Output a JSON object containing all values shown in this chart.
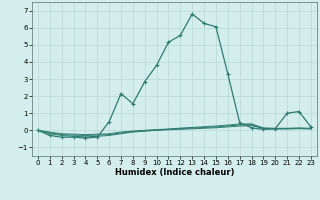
{
  "xlabel": "Humidex (Indice chaleur)",
  "x": [
    0,
    1,
    2,
    3,
    4,
    5,
    6,
    7,
    8,
    9,
    10,
    11,
    12,
    13,
    14,
    15,
    16,
    17,
    18,
    19,
    20,
    21,
    22,
    23
  ],
  "y_main": [
    0,
    -0.3,
    -0.4,
    -0.4,
    -0.45,
    -0.4,
    0.5,
    2.15,
    1.55,
    2.85,
    3.8,
    5.15,
    5.55,
    6.8,
    6.25,
    6.05,
    3.3,
    0.45,
    0.15,
    0.05,
    0.1,
    1.0,
    1.1,
    0.2
  ],
  "y_flat1": [
    0,
    -0.2,
    -0.3,
    -0.35,
    -0.38,
    -0.35,
    -0.3,
    -0.2,
    -0.1,
    -0.05,
    0.0,
    0.03,
    0.06,
    0.09,
    0.12,
    0.15,
    0.2,
    0.25,
    0.28,
    0.1,
    0.08,
    0.08,
    0.1,
    0.08
  ],
  "y_flat2": [
    0,
    -0.15,
    -0.25,
    -0.28,
    -0.3,
    -0.28,
    -0.25,
    -0.15,
    -0.07,
    -0.02,
    0.02,
    0.06,
    0.1,
    0.13,
    0.17,
    0.2,
    0.26,
    0.31,
    0.33,
    0.12,
    0.1,
    0.1,
    0.12,
    0.1
  ],
  "y_flat3": [
    0,
    -0.1,
    -0.2,
    -0.22,
    -0.25,
    -0.22,
    -0.2,
    -0.1,
    -0.04,
    0.0,
    0.04,
    0.08,
    0.13,
    0.17,
    0.21,
    0.25,
    0.31,
    0.37,
    0.38,
    0.14,
    0.12,
    0.12,
    0.14,
    0.12
  ],
  "line_color": "#2e7d6e",
  "bg_color": "#d4eeed",
  "grid_color": "#b8d8d5",
  "ylim": [
    -1.5,
    7.5
  ],
  "xlim": [
    -0.5,
    23.5
  ],
  "yticks": [
    -1,
    0,
    1,
    2,
    3,
    4,
    5,
    6,
    7
  ],
  "xticks": [
    0,
    1,
    2,
    3,
    4,
    5,
    6,
    7,
    8,
    9,
    10,
    11,
    12,
    13,
    14,
    15,
    16,
    17,
    18,
    19,
    20,
    21,
    22,
    23
  ]
}
